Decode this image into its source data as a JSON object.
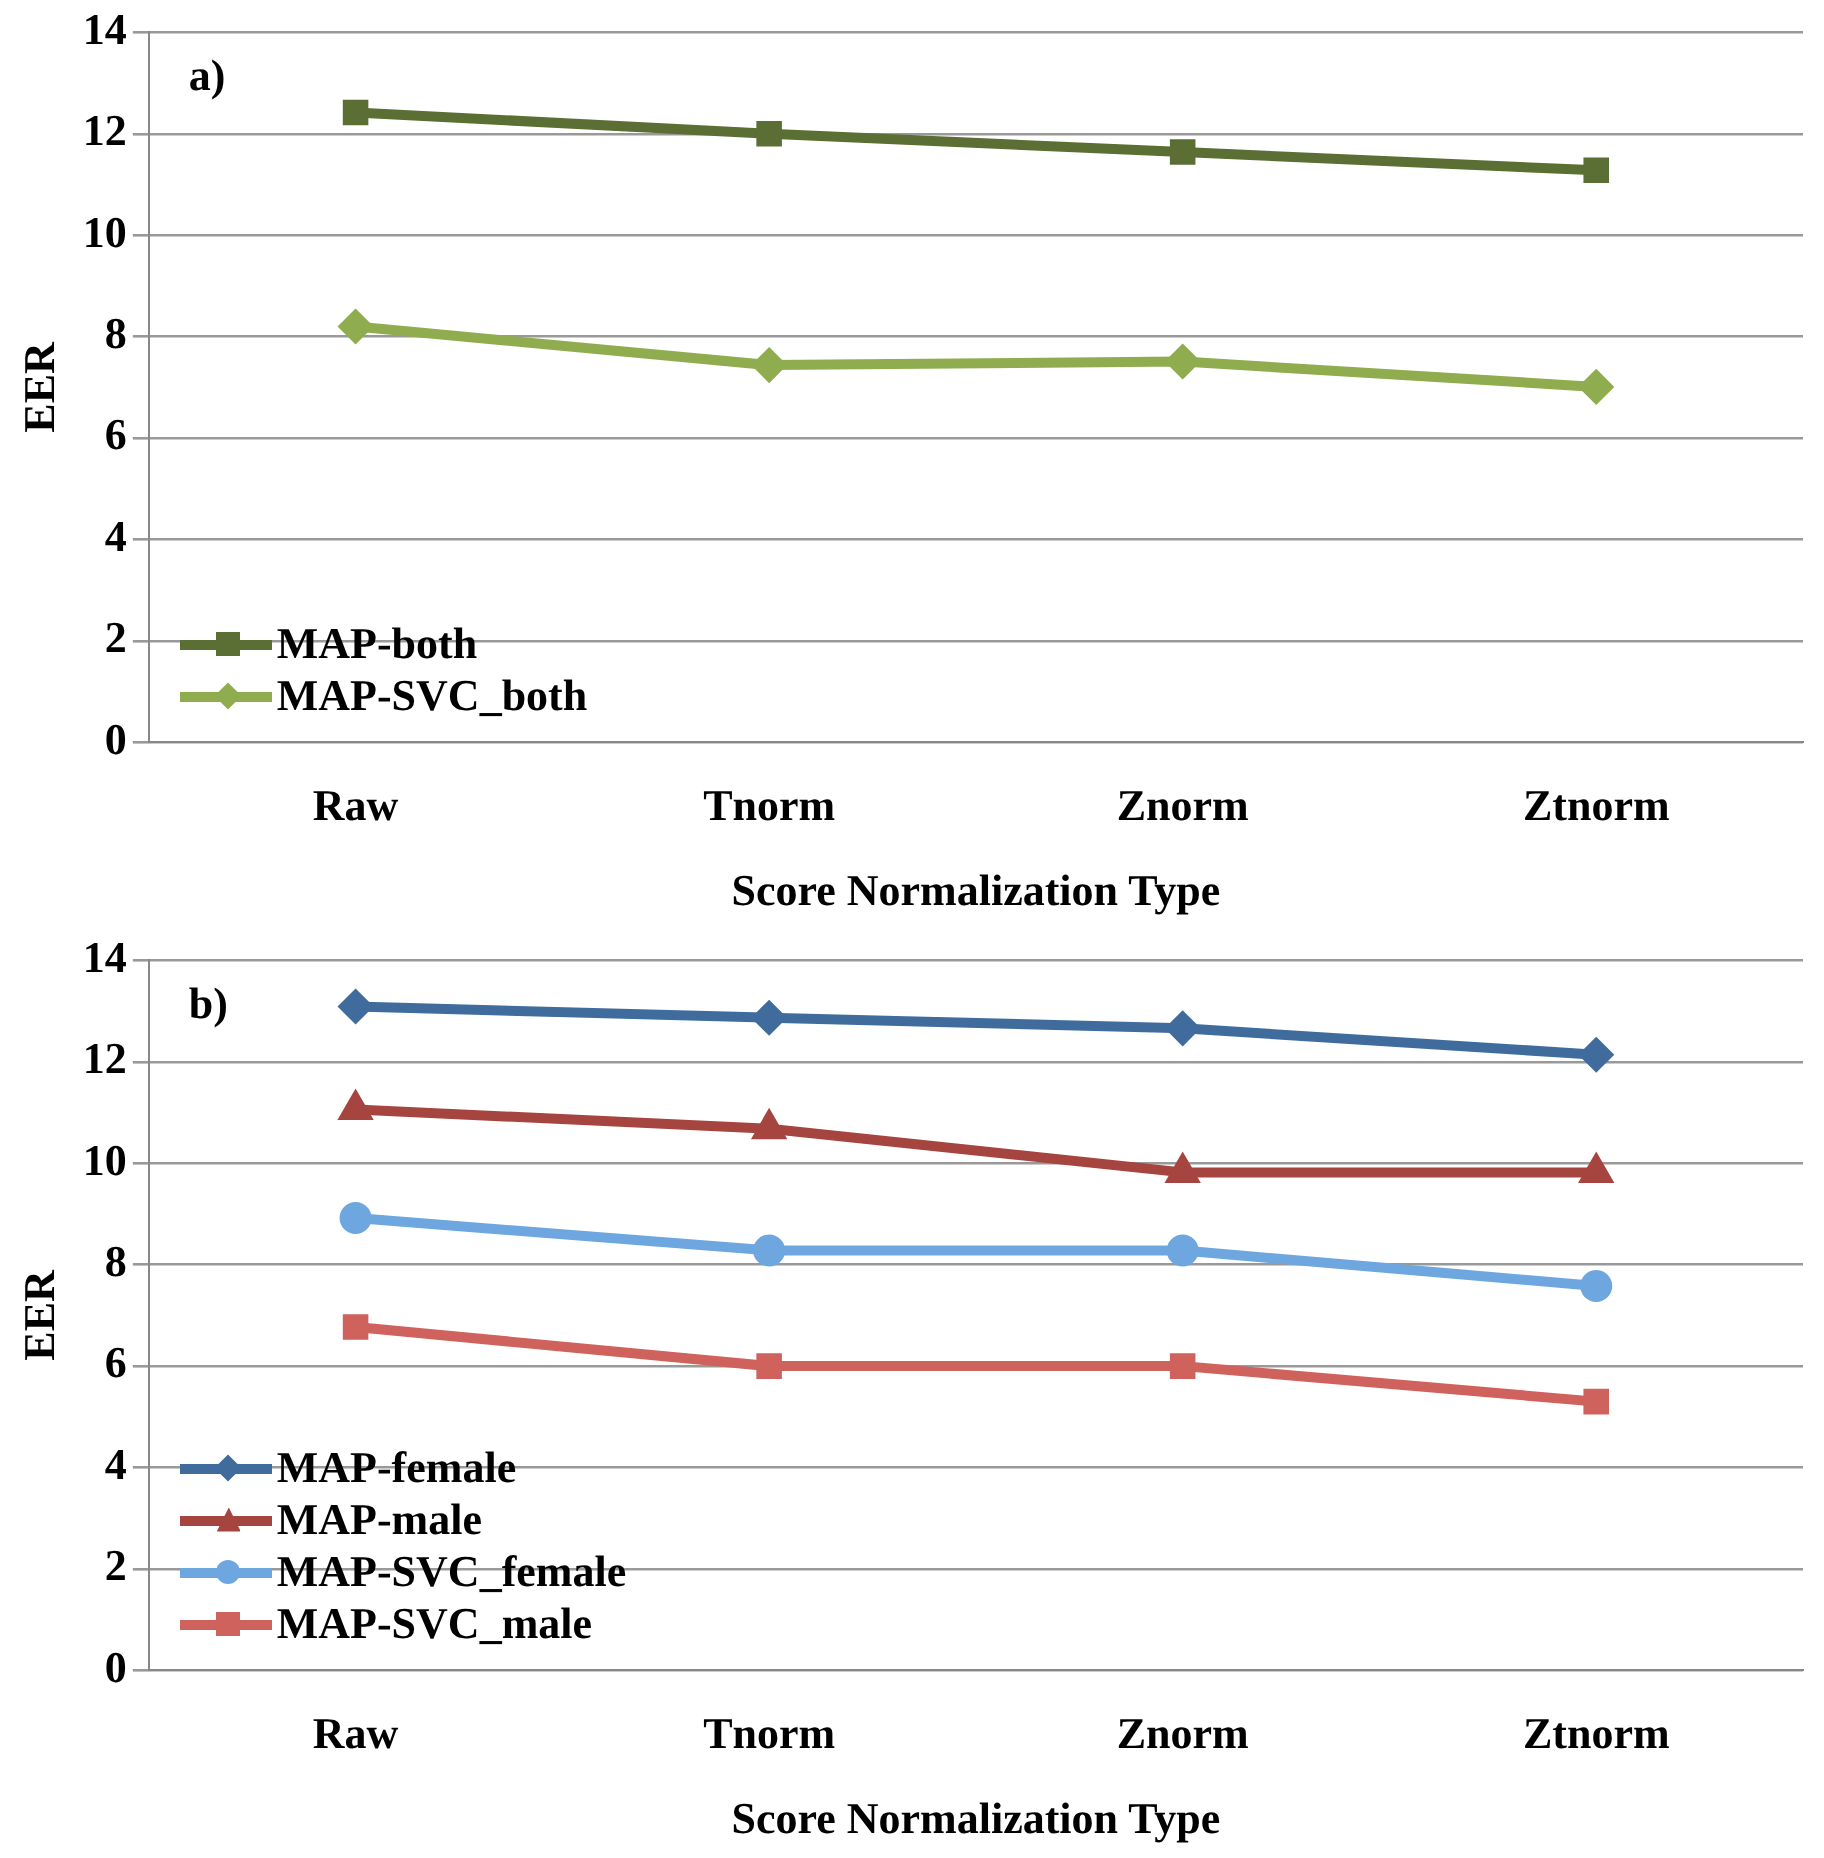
{
  "chart_data": [
    {
      "type": "line",
      "xlabel": "Score Normalization Type",
      "ylabel": "EER",
      "categories": [
        "Raw",
        "Tnorm",
        "Znorm",
        "Ztnorm"
      ],
      "ylim": [
        0,
        14
      ],
      "yticks": [
        0,
        2,
        4,
        6,
        8,
        10,
        12,
        14
      ],
      "grid": "y",
      "legend": "bottom left",
      "annotations": [
        "a)"
      ],
      "line_style": "solid",
      "series": [
        {
          "name": "MAP-both",
          "color": "#5b6e34",
          "marker": "square",
          "values": [
            12.42,
            12.0,
            11.64,
            11.28
          ]
        },
        {
          "name": "MAP-SVC_both",
          "color": "#8fac4f",
          "marker": "diamond",
          "values": [
            8.2,
            7.44,
            7.51,
            7.01
          ]
        }
      ]
    },
    {
      "type": "line",
      "xlabel": "Score Normalization Type",
      "ylabel": "EER",
      "categories": [
        "Raw",
        "Tnorm",
        "Znorm",
        "Ztnorm"
      ],
      "ylim": [
        0,
        14
      ],
      "yticks": [
        0,
        2,
        4,
        6,
        8,
        10,
        12,
        14
      ],
      "grid": "y",
      "legend": "bottom left",
      "annotations": [
        "b)"
      ],
      "line_style": "solid",
      "series": [
        {
          "name": "MAP-female",
          "color": "#3f6c9d",
          "marker": "diamond",
          "values": [
            13.09,
            12.87,
            12.66,
            12.14
          ]
        },
        {
          "name": "MAP-male",
          "color": "#a6443f",
          "marker": "triangle",
          "values": [
            11.06,
            10.68,
            9.82,
            9.82
          ]
        },
        {
          "name": "MAP-SVC_female",
          "color": "#6ea7df",
          "marker": "circle",
          "values": [
            8.92,
            8.28,
            8.28,
            7.58
          ]
        },
        {
          "name": "MAP-SVC_male",
          "color": "#cf625c",
          "marker": "square",
          "values": [
            6.77,
            6.0,
            6.0,
            5.3
          ]
        }
      ]
    }
  ]
}
